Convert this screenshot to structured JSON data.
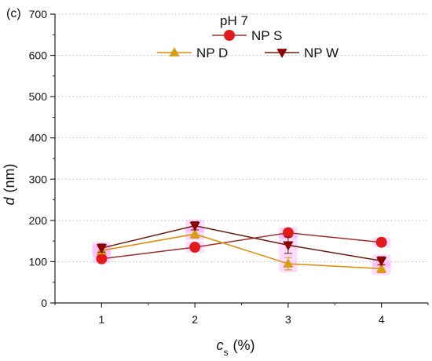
{
  "chart_data": {
    "type": "line",
    "panel_label": "(c)",
    "legend_title": "pH 7",
    "xlabel_main": "c",
    "xlabel_sub": "s",
    "xlabel_unit": "(%)",
    "ylabel_main": "d",
    "ylabel_unit": "(nm)",
    "x": [
      1,
      2,
      3,
      4
    ],
    "xlim": [
      0.5,
      4.5
    ],
    "ylim": [
      0,
      700
    ],
    "xticks": [
      1,
      2,
      3,
      4
    ],
    "yticks": [
      0,
      100,
      200,
      300,
      400,
      500,
      600,
      700
    ],
    "grid": "horizontal dotted",
    "legend_position": "top-center",
    "series": [
      {
        "name": "NP S",
        "marker": "circle",
        "color": "#e31a1c",
        "line_color": "#a52a2a",
        "values": [
          107,
          135,
          170,
          147
        ],
        "error": [
          5,
          8,
          8,
          6
        ]
      },
      {
        "name": "NP D",
        "marker": "triangle-up",
        "color": "#d4a017",
        "line_color": "#e08a00",
        "values": [
          127,
          167,
          95,
          83
        ],
        "error": [
          8,
          10,
          15,
          10
        ]
      },
      {
        "name": "NP W",
        "marker": "triangle-down",
        "color": "#8b0000",
        "line_color": "#6b1a0a",
        "values": [
          133,
          187,
          140,
          102
        ],
        "error": [
          10,
          10,
          20,
          10
        ]
      }
    ],
    "error_highlight_color": "#ff66ff"
  }
}
